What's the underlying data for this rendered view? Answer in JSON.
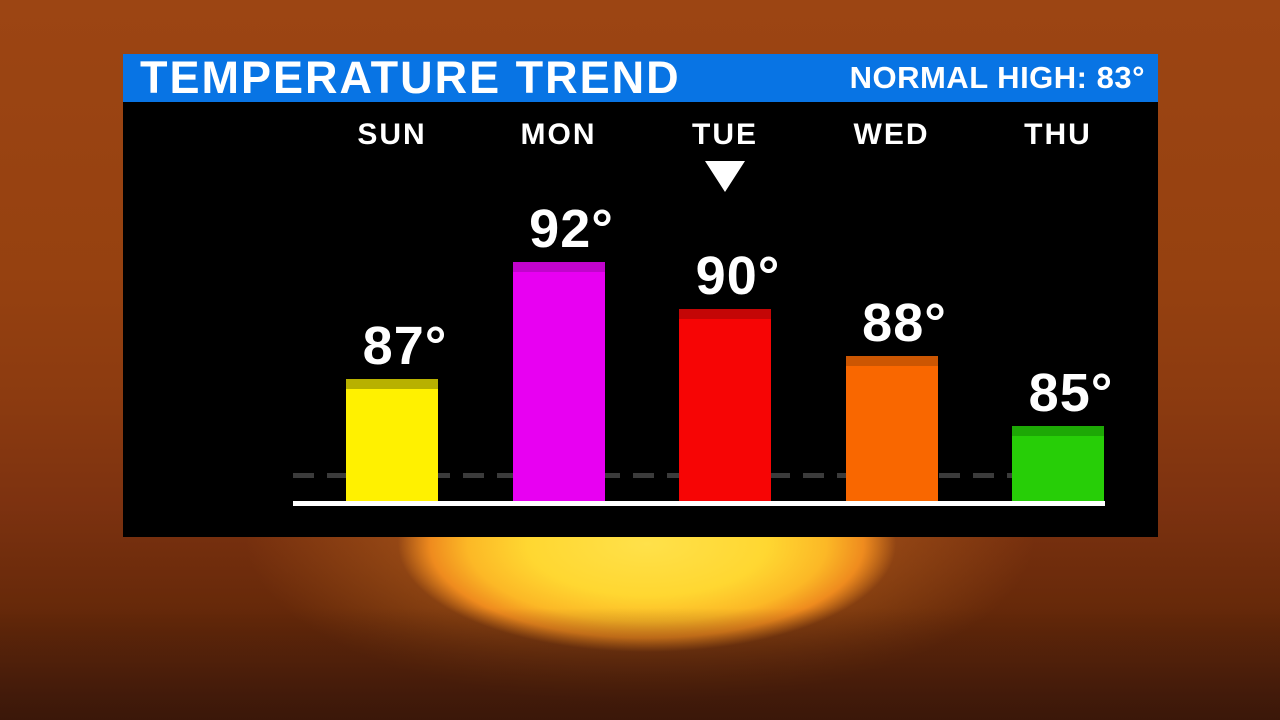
{
  "header": {
    "title": "TEMPERATURE TREND",
    "normal_high_text": "NORMAL HIGH: 83°"
  },
  "chart_data": {
    "type": "bar",
    "title": "TEMPERATURE TREND",
    "categories": [
      "SUN",
      "MON",
      "TUE",
      "WED",
      "THU"
    ],
    "values": [
      87,
      92,
      90,
      88,
      85
    ],
    "value_suffix": "°",
    "normal_high_value": 83,
    "normal_high_line_style": "dashed",
    "marker_category": "TUE",
    "bar_colors": [
      "#FFF100",
      "#E800F2",
      "#F70505",
      "#F96700",
      "#27CE07"
    ],
    "bar_cap_colors": [
      "#B8B100",
      "#C104CC",
      "#C40606",
      "#CC5602",
      "#1DA805"
    ],
    "legend": "none",
    "gridlines": "none",
    "ylim_hint": [
      82,
      95
    ]
  },
  "colors": {
    "header_bg": "#0874E4",
    "panel_bg": "#000000",
    "text": "#FFFFFF",
    "normal_line": "#3B3B3B",
    "baseline": "#FFFFFF",
    "sky": "#8F3C10",
    "sun_core": "#FFDC38"
  }
}
